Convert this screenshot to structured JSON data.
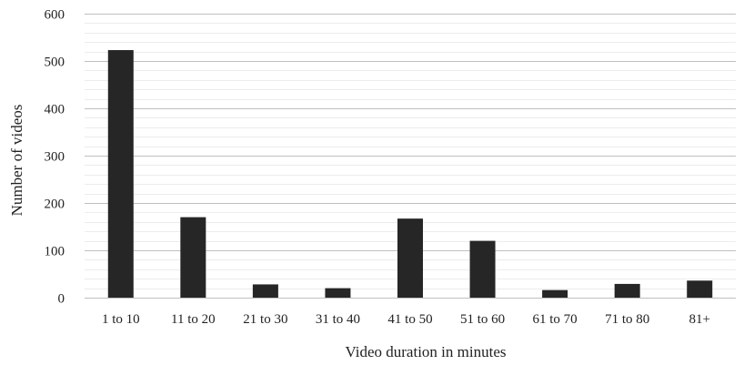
{
  "chart_data": {
    "type": "bar",
    "categories": [
      "1 to 10",
      "11 to 20",
      "21 to 30",
      "31 to 40",
      "41 to 50",
      "51 to 60",
      "61 to 70",
      "71 to 80",
      "81+"
    ],
    "series": [
      {
        "values": [
          523,
          170,
          28,
          20,
          167,
          120,
          16,
          29,
          36
        ]
      }
    ],
    "title": "",
    "xlabel": "Video duration in minutes",
    "ylabel": "Number of videos",
    "ylim": [
      0,
      600
    ],
    "yticks": [
      0,
      100,
      200,
      300,
      400,
      500,
      600
    ],
    "grid": true,
    "minor_grid": true,
    "legend": "none",
    "bar_color": "#262626",
    "grid_color": "#bfbfbf",
    "minor_grid_color": "#ececec"
  }
}
